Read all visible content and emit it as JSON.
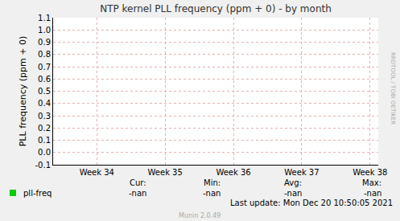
{
  "chart_data": {
    "type": "line",
    "title": "NTP kernel PLL frequency (ppm + 0) - by month",
    "y_label": "PLL frequency (ppm + 0)",
    "x": [
      34,
      35,
      36,
      37,
      38
    ],
    "series": [
      {
        "name": "pll-freq",
        "color": "#00cc00",
        "values": [
          null,
          null,
          null,
          null,
          null
        ]
      }
    ],
    "xlim": [
      33.36,
      38.12
    ],
    "xticks": [
      {
        "value": 34,
        "label": "Week 34"
      },
      {
        "value": 35,
        "label": "Week 35"
      },
      {
        "value": 36,
        "label": "Week 36"
      },
      {
        "value": 37,
        "label": "Week 37"
      },
      {
        "value": 38,
        "label": "Week 38"
      }
    ],
    "ylim": [
      -0.1,
      1.1
    ],
    "yticks": [
      -0.1,
      {
        "value": 0,
        "label": "0.0"
      },
      0.1,
      0.2,
      0.3,
      0.4,
      0.5,
      0.6,
      0.7,
      0.8,
      0.9,
      {
        "value": 1,
        "label": "1.0"
      },
      1.1
    ],
    "grid": true,
    "stats": {
      "headers": [
        "Cur:",
        "Min:",
        "Avg:",
        "Max:"
      ],
      "values": [
        "-nan",
        "-nan",
        "-nan",
        "-nan"
      ]
    },
    "last_update": "Last update: Mon Dec 20 10:50:05 2021",
    "footer": "Munin 2.0.49",
    "watermark": "RRDTOOL / TOBI OETIKER"
  }
}
